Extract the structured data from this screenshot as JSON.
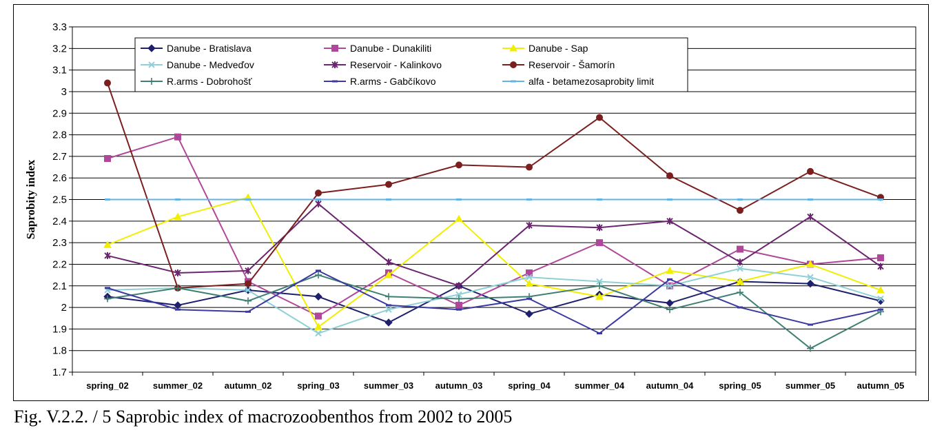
{
  "caption": "Fig. V.2.2. / 5  Saprobic index of macrozoobenthos from 2002 to 2005",
  "chart_data": {
    "type": "line",
    "title": "",
    "xlabel": "",
    "ylabel": "Saprobity index",
    "ylim": [
      1.7,
      3.3
    ],
    "yticks": [
      "1.7",
      "1.8",
      "1.9",
      "2",
      "2.1",
      "2.2",
      "2.3",
      "2.4",
      "2.5",
      "2.6",
      "2.7",
      "2.8",
      "2.9",
      "3",
      "3.1",
      "3.2",
      "3.3"
    ],
    "grid": true,
    "legend_position": "top",
    "categories": [
      "spring_02",
      "summer_02",
      "autumn_02",
      "spring_03",
      "summer_03",
      "autumn_03",
      "spring_04",
      "summer_04",
      "autumn_04",
      "spring_05",
      "summer_05",
      "autumn_05"
    ],
    "series": [
      {
        "name": "Danube - Bratislava",
        "color": "#1f1f6e",
        "marker": "diamond",
        "values": [
          2.05,
          2.01,
          2.08,
          2.05,
          1.93,
          2.1,
          1.97,
          2.06,
          2.02,
          2.12,
          2.11,
          2.03
        ]
      },
      {
        "name": "Danube - Dunakiliti",
        "color": "#b0479a",
        "marker": "square",
        "values": [
          2.69,
          2.79,
          2.12,
          1.96,
          2.16,
          2.01,
          2.16,
          2.3,
          2.1,
          2.27,
          2.2,
          2.23
        ]
      },
      {
        "name": "Danube - Sap",
        "color": "#f2ee00",
        "marker": "triangle",
        "values": [
          2.29,
          2.42,
          2.51,
          1.91,
          2.15,
          2.41,
          2.11,
          2.05,
          2.17,
          2.12,
          2.2,
          2.08
        ]
      },
      {
        "name": "Danube - Medveďov",
        "color": "#8fcfd6",
        "marker": "x",
        "values": [
          2.08,
          2.09,
          2.08,
          1.88,
          1.99,
          2.06,
          2.14,
          2.12,
          2.1,
          2.18,
          2.14,
          2.04
        ]
      },
      {
        "name": "Reservoir - Kalinkovo",
        "color": "#6b2470",
        "marker": "star",
        "values": [
          2.24,
          2.16,
          2.17,
          2.48,
          2.21,
          2.1,
          2.38,
          2.37,
          2.4,
          2.21,
          2.42,
          2.19
        ]
      },
      {
        "name": "Reservoir - Šamorín",
        "color": "#7a1e1e",
        "marker": "circle",
        "values": [
          3.04,
          2.09,
          2.11,
          2.53,
          2.57,
          2.66,
          2.65,
          2.88,
          2.61,
          2.45,
          2.63,
          2.51
        ]
      },
      {
        "name": "R.arms - Dobrohošť",
        "color": "#3e7f72",
        "marker": "plus",
        "values": [
          2.04,
          2.09,
          2.03,
          2.15,
          2.05,
          2.04,
          2.05,
          2.1,
          1.99,
          2.07,
          1.81,
          1.98
        ]
      },
      {
        "name": "R.arms - Gabčíkovo",
        "color": "#3a3aa0",
        "marker": "dash",
        "values": [
          2.09,
          1.99,
          1.98,
          2.17,
          2.01,
          1.99,
          2.04,
          1.88,
          2.13,
          2.0,
          1.92,
          1.99
        ]
      },
      {
        "name": "alfa - betamezosaprobity limit",
        "color": "#62b4e6",
        "marker": "dash",
        "values": [
          2.5,
          2.5,
          2.5,
          2.5,
          2.5,
          2.5,
          2.5,
          2.5,
          2.5,
          2.5,
          2.5,
          2.5
        ]
      }
    ]
  }
}
